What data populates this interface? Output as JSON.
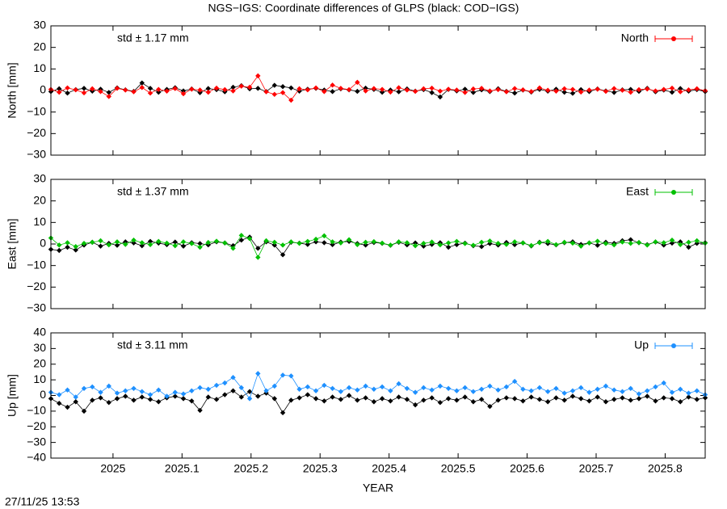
{
  "title": "NGS−IGS: Coordinate differences of GLPS (black: COD−IGS)",
  "timestamp": "27/11/25 13:53",
  "chart_data": [
    {
      "type": "line",
      "ylabel": "North [mm]",
      "annotation": "std ± 1.17 mm",
      "legend": "top right",
      "xlim": [
        2024.91,
        2025.858
      ],
      "xticks": [
        2025,
        2025.1,
        2025.2,
        2025.3,
        2025.4,
        2025.5,
        2025.6,
        2025.7,
        2025.8
      ],
      "ylim": [
        -30,
        30
      ],
      "yticks": [
        {
          "value": -30,
          "label": "−30"
        },
        {
          "value": -20,
          "label": "−20"
        },
        {
          "value": -10,
          "label": "−10"
        },
        0,
        10,
        20,
        30
      ],
      "x": [
        2024.91,
        2024.922,
        2024.934,
        2024.946,
        2024.958,
        2024.97,
        2024.982,
        2024.994,
        2025.006,
        2025.018,
        2025.03,
        2025.042,
        2025.054,
        2025.066,
        2025.078,
        2025.09,
        2025.102,
        2025.114,
        2025.126,
        2025.138,
        2025.15,
        2025.162,
        2025.174,
        2025.186,
        2025.198,
        2025.21,
        2025.222,
        2025.234,
        2025.246,
        2025.258,
        2025.27,
        2025.282,
        2025.294,
        2025.306,
        2025.318,
        2025.33,
        2025.342,
        2025.354,
        2025.366,
        2025.378,
        2025.39,
        2025.402,
        2025.414,
        2025.426,
        2025.438,
        2025.45,
        2025.462,
        2025.474,
        2025.486,
        2025.498,
        2025.51,
        2025.522,
        2025.534,
        2025.546,
        2025.558,
        2025.57,
        2025.582,
        2025.594,
        2025.606,
        2025.618,
        2025.63,
        2025.642,
        2025.654,
        2025.666,
        2025.678,
        2025.69,
        2025.702,
        2025.714,
        2025.726,
        2025.738,
        2025.75,
        2025.762,
        2025.774,
        2025.786,
        2025.798,
        2025.81,
        2025.822,
        2025.834,
        2025.846,
        2025.858
      ],
      "series": [
        {
          "color": "#000000",
          "values": [
            -0.5,
            0.8,
            -1.2,
            0.4,
            1.0,
            -0.3,
            0.6,
            -0.9,
            1.2,
            0.3,
            -0.4,
            3.5,
            1.0,
            -0.8,
            0.5,
            1.3,
            -0.2,
            0.7,
            -1.0,
            0.9,
            0.4,
            -0.6,
            1.5,
            2.2,
            0.8,
            1.0,
            -0.5,
            2.4,
            1.8,
            1.2,
            -0.3,
            0.6,
            1.0,
            0.2,
            -0.5,
            0.8,
            0.3,
            -0.4,
            1.1,
            0.5,
            -0.8,
            0.2,
            -0.6,
            0.7,
            -0.3,
            0.4,
            -1.0,
            -3.0,
            0.5,
            -0.2,
            0.6,
            -0.9,
            0.3,
            -0.5,
            0.8,
            -0.4,
            -1.2,
            0.2,
            -0.7,
            0.5,
            -0.3,
            0.6,
            -0.8,
            -1.3,
            0.4,
            -0.5,
            0.7,
            -0.2,
            -0.9,
            0.3,
            0.5,
            -0.4,
            1.0,
            -0.6,
            0.2,
            -0.8,
            0.9,
            -0.3,
            0.4,
            -0.5
          ]
        },
        {
          "name": "North",
          "color": "#ff0000",
          "values": [
            0.5,
            -0.8,
            1.2,
            0.3,
            -1.1,
            0.8,
            -0.5,
            -2.8,
            1.0,
            0.2,
            -0.6,
            1.4,
            -1.2,
            0.5,
            -0.3,
            0.9,
            -1.5,
            0.6,
            0.2,
            -0.8,
            1.1,
            0.4,
            -0.2,
            2.0,
            1.5,
            6.8,
            -0.6,
            -1.8,
            -1.0,
            -4.5,
            0.8,
            0.3,
            1.2,
            -0.5,
            2.5,
            1.0,
            0.4,
            3.8,
            -0.2,
            0.9,
            0.5,
            -0.7,
            1.3,
            0.2,
            -0.4,
            0.8,
            1.1,
            -0.3,
            0.6,
            0.2,
            -0.9,
            0.7,
            1.0,
            -0.2,
            0.4,
            -0.6,
            0.9,
            0.3,
            -0.5,
            1.2,
            0.1,
            -0.3,
            0.8,
            0.5,
            -0.7,
            0.2,
            0.6,
            -0.4,
            0.9,
            0.1,
            -0.8,
            0.4,
            0.7,
            -0.2,
            0.5,
            1.1,
            -0.6,
            0.3,
            0.8,
            -0.1
          ]
        }
      ]
    },
    {
      "type": "line",
      "ylabel": "East [mm]",
      "annotation": "std ± 1.37 mm",
      "legend": "top right",
      "xlim": [
        2024.91,
        2025.858
      ],
      "xticks": [
        2025,
        2025.1,
        2025.2,
        2025.3,
        2025.4,
        2025.5,
        2025.6,
        2025.7,
        2025.8
      ],
      "ylim": [
        -30,
        30
      ],
      "yticks": [
        {
          "value": -30,
          "label": "−30"
        },
        {
          "value": -20,
          "label": "−20"
        },
        {
          "value": -10,
          "label": "−10"
        },
        0,
        10,
        20,
        30
      ],
      "x": [
        2024.91,
        2024.922,
        2024.934,
        2024.946,
        2024.958,
        2024.97,
        2024.982,
        2024.994,
        2025.006,
        2025.018,
        2025.03,
        2025.042,
        2025.054,
        2025.066,
        2025.078,
        2025.09,
        2025.102,
        2025.114,
        2025.126,
        2025.138,
        2025.15,
        2025.162,
        2025.174,
        2025.186,
        2025.198,
        2025.21,
        2025.222,
        2025.234,
        2025.246,
        2025.258,
        2025.27,
        2025.282,
        2025.294,
        2025.306,
        2025.318,
        2025.33,
        2025.342,
        2025.354,
        2025.366,
        2025.378,
        2025.39,
        2025.402,
        2025.414,
        2025.426,
        2025.438,
        2025.45,
        2025.462,
        2025.474,
        2025.486,
        2025.498,
        2025.51,
        2025.522,
        2025.534,
        2025.546,
        2025.558,
        2025.57,
        2025.582,
        2025.594,
        2025.606,
        2025.618,
        2025.63,
        2025.642,
        2025.654,
        2025.666,
        2025.678,
        2025.69,
        2025.702,
        2025.714,
        2025.726,
        2025.738,
        2025.75,
        2025.762,
        2025.774,
        2025.786,
        2025.798,
        2025.81,
        2025.822,
        2025.834,
        2025.846,
        2025.858
      ],
      "series": [
        {
          "color": "#000000",
          "values": [
            -2.5,
            -3.0,
            -1.5,
            -2.8,
            -0.5,
            0.8,
            -1.0,
            0.3,
            -0.6,
            1.0,
            0.5,
            -0.8,
            1.2,
            0.4,
            -0.3,
            0.9,
            -1.0,
            0.6,
            0.2,
            -0.4,
            1.0,
            0.5,
            -0.8,
            1.8,
            3.2,
            -2.0,
            1.0,
            -0.5,
            -5.0,
            0.8,
            0.4,
            -0.2,
            1.0,
            0.6,
            -0.3,
            0.9,
            1.2,
            0.2,
            -0.5,
            0.7,
            0.3,
            -0.6,
            0.8,
            -0.4,
            0.5,
            -1.0,
            -0.2,
            0.6,
            -1.5,
            -0.3,
            0.4,
            -0.8,
            -1.2,
            0.2,
            -0.5,
            0.7,
            -0.3,
            0.5,
            -0.9,
            0.8,
            0.2,
            -0.4,
            0.6,
            1.0,
            -0.2,
            0.5,
            -0.6,
            0.8,
            0.3,
            1.5,
            2.0,
            0.6,
            -0.3,
            0.9,
            -0.5,
            0.4,
            1.0,
            -1.5,
            0.3,
            0.6
          ]
        },
        {
          "name": "East",
          "color": "#00c000",
          "values": [
            2.8,
            -0.5,
            0.6,
            -1.2,
            0.3,
            0.8,
            1.5,
            -0.4,
            1.0,
            -0.2,
            1.8,
            0.6,
            -0.3,
            1.2,
            0.4,
            -0.8,
            1.0,
            0.2,
            -1.5,
            0.7,
            1.3,
            0.5,
            -2.0,
            4.0,
            2.5,
            -6.2,
            1.5,
            0.8,
            -0.5,
            1.0,
            0.3,
            1.2,
            2.2,
            3.8,
            1.0,
            0.5,
            2.0,
            -0.3,
            0.8,
            1.1,
            0.4,
            -0.5,
            1.0,
            0.6,
            -0.8,
            0.3,
            0.9,
            -0.4,
            0.5,
            1.2,
            0.2,
            -0.6,
            0.8,
            1.4,
            0.3,
            -0.2,
            1.0,
            0.5,
            -0.7,
            0.6,
            1.2,
            -0.3,
            0.8,
            0.4,
            -1.0,
            0.5,
            1.3,
            0.2,
            -0.4,
            0.9,
            0.3,
            0.7,
            -0.5,
            1.0,
            0.6,
            1.8,
            -0.3,
            0.8,
            1.5,
            0.4
          ]
        }
      ]
    },
    {
      "type": "line",
      "ylabel": "Up [mm]",
      "annotation": "std ± 3.11 mm",
      "legend": "top right",
      "xlabel": "YEAR",
      "xlim": [
        2024.91,
        2025.858
      ],
      "xticks": [
        2025,
        2025.1,
        2025.2,
        2025.3,
        2025.4,
        2025.5,
        2025.6,
        2025.7,
        2025.8
      ],
      "ylim": [
        -40,
        40
      ],
      "yticks": [
        {
          "value": -40,
          "label": "−40"
        },
        {
          "value": -30,
          "label": "−30"
        },
        {
          "value": -20,
          "label": "−20"
        },
        {
          "value": -10,
          "label": "−10"
        },
        0,
        10,
        20,
        30,
        40
      ],
      "x": [
        2024.91,
        2024.922,
        2024.934,
        2024.946,
        2024.958,
        2024.97,
        2024.982,
        2024.994,
        2025.006,
        2025.018,
        2025.03,
        2025.042,
        2025.054,
        2025.066,
        2025.078,
        2025.09,
        2025.102,
        2025.114,
        2025.126,
        2025.138,
        2025.15,
        2025.162,
        2025.174,
        2025.186,
        2025.198,
        2025.21,
        2025.222,
        2025.234,
        2025.246,
        2025.258,
        2025.27,
        2025.282,
        2025.294,
        2025.306,
        2025.318,
        2025.33,
        2025.342,
        2025.354,
        2025.366,
        2025.378,
        2025.39,
        2025.402,
        2025.414,
        2025.426,
        2025.438,
        2025.45,
        2025.462,
        2025.474,
        2025.486,
        2025.498,
        2025.51,
        2025.522,
        2025.534,
        2025.546,
        2025.558,
        2025.57,
        2025.582,
        2025.594,
        2025.606,
        2025.618,
        2025.63,
        2025.642,
        2025.654,
        2025.666,
        2025.678,
        2025.69,
        2025.702,
        2025.714,
        2025.726,
        2025.738,
        2025.75,
        2025.762,
        2025.774,
        2025.786,
        2025.798,
        2025.81,
        2025.822,
        2025.834,
        2025.846,
        2025.858
      ],
      "series": [
        {
          "color": "#000000",
          "values": [
            -2.0,
            -5.0,
            -7.5,
            -4.0,
            -10.0,
            -3.0,
            -1.5,
            -4.5,
            -2.0,
            -0.5,
            -3.0,
            -1.0,
            -2.5,
            -4.0,
            -1.5,
            -0.5,
            -2.0,
            -3.5,
            -9.5,
            -1.0,
            -2.5,
            0.5,
            3.0,
            -1.0,
            2.5,
            -0.5,
            1.5,
            -2.0,
            -11.0,
            -3.0,
            -1.5,
            0.5,
            -2.0,
            -3.5,
            -1.0,
            -2.5,
            0.0,
            -3.0,
            -1.5,
            -4.0,
            -2.0,
            -3.5,
            -1.0,
            -2.5,
            -6.0,
            -3.0,
            -1.5,
            -4.5,
            -2.0,
            -3.0,
            -1.0,
            -4.0,
            -2.5,
            -7.0,
            -3.0,
            -1.5,
            -2.0,
            -3.5,
            -1.0,
            -2.5,
            -4.0,
            -1.5,
            -3.0,
            -0.5,
            -2.0,
            -3.5,
            -1.0,
            -4.0,
            -2.5,
            -1.5,
            -3.0,
            -2.0,
            -0.5,
            -3.5,
            -1.5,
            -2.0,
            -4.0,
            -1.0,
            -2.5,
            -1.5
          ]
        },
        {
          "name": "Up",
          "color": "#1e90ff",
          "values": [
            2.0,
            0.5,
            3.5,
            -1.0,
            4.5,
            5.5,
            2.0,
            6.0,
            1.5,
            3.0,
            4.5,
            2.5,
            0.5,
            3.5,
            -0.5,
            2.0,
            1.0,
            3.0,
            5.0,
            4.0,
            6.5,
            8.0,
            11.5,
            5.0,
            -2.0,
            14.0,
            3.0,
            6.0,
            13.0,
            12.5,
            4.0,
            5.5,
            3.0,
            6.5,
            4.5,
            2.5,
            5.0,
            3.5,
            6.0,
            4.0,
            5.5,
            3.0,
            7.5,
            4.5,
            2.0,
            5.0,
            3.5,
            6.0,
            4.5,
            3.0,
            5.0,
            2.5,
            4.0,
            6.0,
            3.5,
            5.5,
            9.0,
            4.0,
            3.0,
            5.0,
            2.5,
            4.5,
            1.5,
            3.0,
            5.0,
            2.0,
            4.0,
            6.0,
            3.5,
            2.5,
            4.5,
            1.0,
            3.0,
            5.5,
            8.0,
            2.0,
            4.0,
            1.5,
            3.0,
            0.5
          ]
        }
      ]
    }
  ]
}
